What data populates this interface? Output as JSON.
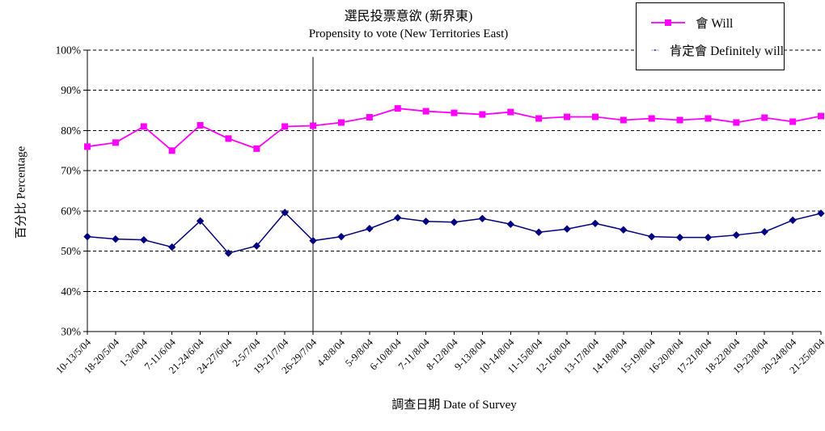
{
  "chart_data": {
    "type": "line",
    "title_zh": "選民投票意欲 (新界東)",
    "title_en": "Propensity to vote (New Territories East)",
    "xlabel": "調查日期 Date of Survey",
    "ylabel": "百分比 Percentage",
    "ylim": [
      30,
      100
    ],
    "y_tick_step": 10,
    "y_tick_labels": [
      "100%",
      "90%",
      "80%",
      "70%",
      "60%",
      "50%",
      "40%",
      "30%"
    ],
    "grid": "horizontal-dashed",
    "legend_position": "top-right",
    "categories": [
      "10-13/5/04",
      "18-20/5/04",
      "1-3/6/04",
      "7-11/6/04",
      "21-24/6/04",
      "24-27/6/04",
      "2-5/7/04",
      "19-21/7/04",
      "26-29/7/04",
      "4-8/8/04",
      "5-9/8/04",
      "6-10/8/04",
      "7-11/8/04",
      "8-12/8/04",
      "9-13/8/04",
      "10-14/8/04",
      "11-15/8/04",
      "12-16/8/04",
      "13-17/8/04",
      "14-18/8/04",
      "15-19/8/04",
      "16-20/8/04",
      "17-21/8/04",
      "18-22/8/04",
      "19-23/8/04",
      "20-24/8/04",
      "21-25/8/04"
    ],
    "series": [
      {
        "name": "會 Will",
        "color": "#FF00FF",
        "marker": "square",
        "values": [
          76.0,
          77.0,
          81.0,
          75.0,
          81.3,
          78.0,
          75.5,
          81.0,
          81.2,
          82.0,
          83.3,
          85.5,
          84.8,
          84.4,
          84.0,
          84.6,
          83.0,
          83.4,
          83.4,
          82.6,
          83.0,
          82.6,
          83.0,
          82.0,
          83.2,
          82.2,
          83.6
        ]
      },
      {
        "name": "肯定會 Definitely will",
        "color": "#000080",
        "marker": "diamond",
        "values": [
          53.6,
          53.0,
          52.8,
          51.0,
          57.5,
          49.5,
          51.3,
          59.6,
          52.6,
          53.6,
          55.6,
          58.3,
          57.4,
          57.2,
          58.1,
          56.7,
          54.7,
          55.5,
          56.9,
          55.3,
          53.6,
          53.4,
          53.4,
          54.0,
          54.8,
          57.7,
          59.4
        ]
      }
    ],
    "annotations": [
      {
        "type": "vline",
        "at_category": "26-29/7/04",
        "color": "#000000"
      }
    ],
    "axis_color": "#000000",
    "background_color": "#FFFFFF"
  }
}
